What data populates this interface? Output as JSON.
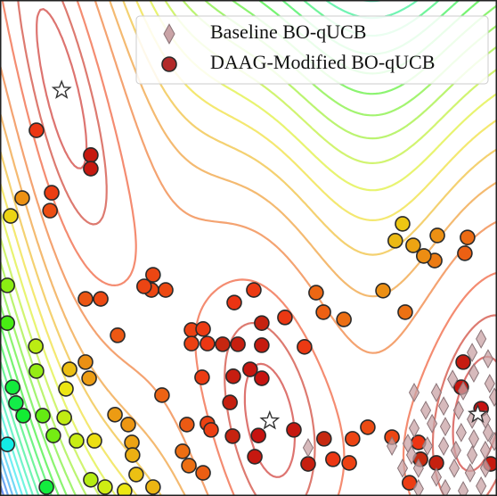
{
  "chart_data": {
    "type": "scatter",
    "xlim": [
      -5,
      10
    ],
    "ylim": [
      0,
      15
    ],
    "legend": "upper right",
    "series": [
      {
        "name": "Baseline BO-qUCB",
        "color": "#c9a3a6",
        "marker": "diamond",
        "x": [
          4.3,
          9.52,
          9.25,
          9.73,
          9.3,
          9.78,
          8.66,
          8.98,
          8.17,
          8.39,
          8.84,
          9.25,
          9.65,
          9.92,
          7.85,
          8.04,
          8.44,
          8.92,
          9.3,
          9.73,
          7.5,
          7.31,
          6.83,
          7.42,
          7.9,
          8.39,
          8.76,
          9.25,
          9.65,
          9.92,
          7.63,
          8.17,
          8.71,
          9.19,
          9.65,
          8.44,
          8.98,
          9.52,
          7.63,
          7.15,
          7.5
        ],
        "y": [
          1.46,
          4.75,
          4.34,
          4.15,
          3.72,
          3.4,
          3.53,
          3.18,
          3.13,
          2.72,
          2.59,
          2.32,
          2.32,
          2.99,
          2.59,
          2.19,
          2.1,
          1.92,
          1.73,
          1.92,
          2.05,
          1.59,
          1.51,
          1.24,
          1.51,
          1.51,
          1.38,
          1.24,
          1.38,
          1.65,
          0.84,
          0.57,
          0.84,
          0.7,
          0.84,
          0.22,
          0.16,
          0.3,
          0.22,
          0.84,
          3.13
        ]
      },
      {
        "name": "DAAG-Modified BO-qUCB",
        "color": "#b22a2a",
        "marker": "circle",
        "x": [
          -3.9,
          -2.26,
          -2.26,
          -4.33,
          -3.44,
          -3.49,
          -4.68,
          7.15,
          6.93,
          7.47,
          8.2,
          9.11,
          9.03,
          8.12,
          7.79,
          6.56,
          7.23,
          -0.38,
          -0.43,
          0.0,
          -2.42,
          -1.96,
          -0.65,
          2.66,
          2.07,
          4.54,
          4.76,
          5.38,
          3.6,
          2.9,
          -4.78,
          -4.78,
          -1.45,
          0.78,
          1.13,
          1.72,
          2.18,
          2.9,
          4.19,
          0.78,
          1.26,
          2.55,
          2.9,
          2.04,
          1.1,
          1.94,
          -0.11,
          -1.53,
          -1.13,
          0.64,
          1.26,
          2.02,
          1.37,
          2.8,
          3.87,
          2.69,
          -2.42,
          -2.9,
          -3.01,
          -2.31,
          -3.9,
          -4.62,
          -4.52,
          -4.3,
          -3.71,
          -3.06,
          -2.69,
          -2.15,
          -3.39,
          -4.78,
          -1.02,
          -1.0,
          0.51,
          0.7,
          1.13,
          -0.89,
          -1.24,
          -2.26,
          -1.83,
          -0.38,
          4.3,
          4.78,
          5.05,
          5.54,
          5.64,
          6.1,
          6.83,
          7.63,
          8.17,
          7.69,
          8.98,
          8.92,
          9.52,
          7.36,
          9.81,
          -3.92,
          -3.6
        ],
        "y": [
          11.06,
          10.31,
          9.9,
          9.01,
          9.17,
          8.63,
          8.47,
          8.23,
          7.72,
          7.58,
          7.88,
          7.82,
          7.34,
          7.12,
          7.26,
          6.21,
          5.56,
          6.69,
          6.23,
          6.23,
          5.96,
          5.96,
          6.34,
          6.23,
          5.85,
          6.15,
          5.56,
          5.34,
          5.4,
          5.23,
          6.37,
          5.23,
          4.86,
          5.02,
          5.05,
          4.59,
          4.59,
          4.56,
          4.51,
          4.61,
          4.61,
          3.83,
          3.56,
          3.62,
          3.59,
          2.83,
          3.05,
          2.46,
          2.16,
          2.16,
          2.19,
          1.81,
          2.0,
          1.83,
          2.0,
          1.19,
          4.05,
          3.83,
          3.24,
          3.56,
          3.78,
          3.29,
          2.81,
          2.43,
          2.43,
          2.37,
          1.67,
          1.67,
          1.83,
          1.56,
          1.62,
          1.24,
          1.35,
          0.92,
          0.7,
          0.65,
          0.16,
          0.49,
          0.27,
          0.27,
          0.97,
          1.73,
          1.11,
          1.0,
          1.73,
          2.08,
          1.78,
          1.62,
          1.0,
          1.11,
          4.05,
          3.29,
          2.64,
          0.4,
          0.97,
          4.53,
          0.27
        ]
      }
    ],
    "markers": {
      "x": [
        -3.14,
        3.14,
        9.42
      ],
      "y": [
        12.27,
        2.27,
        2.47
      ]
    }
  }
}
